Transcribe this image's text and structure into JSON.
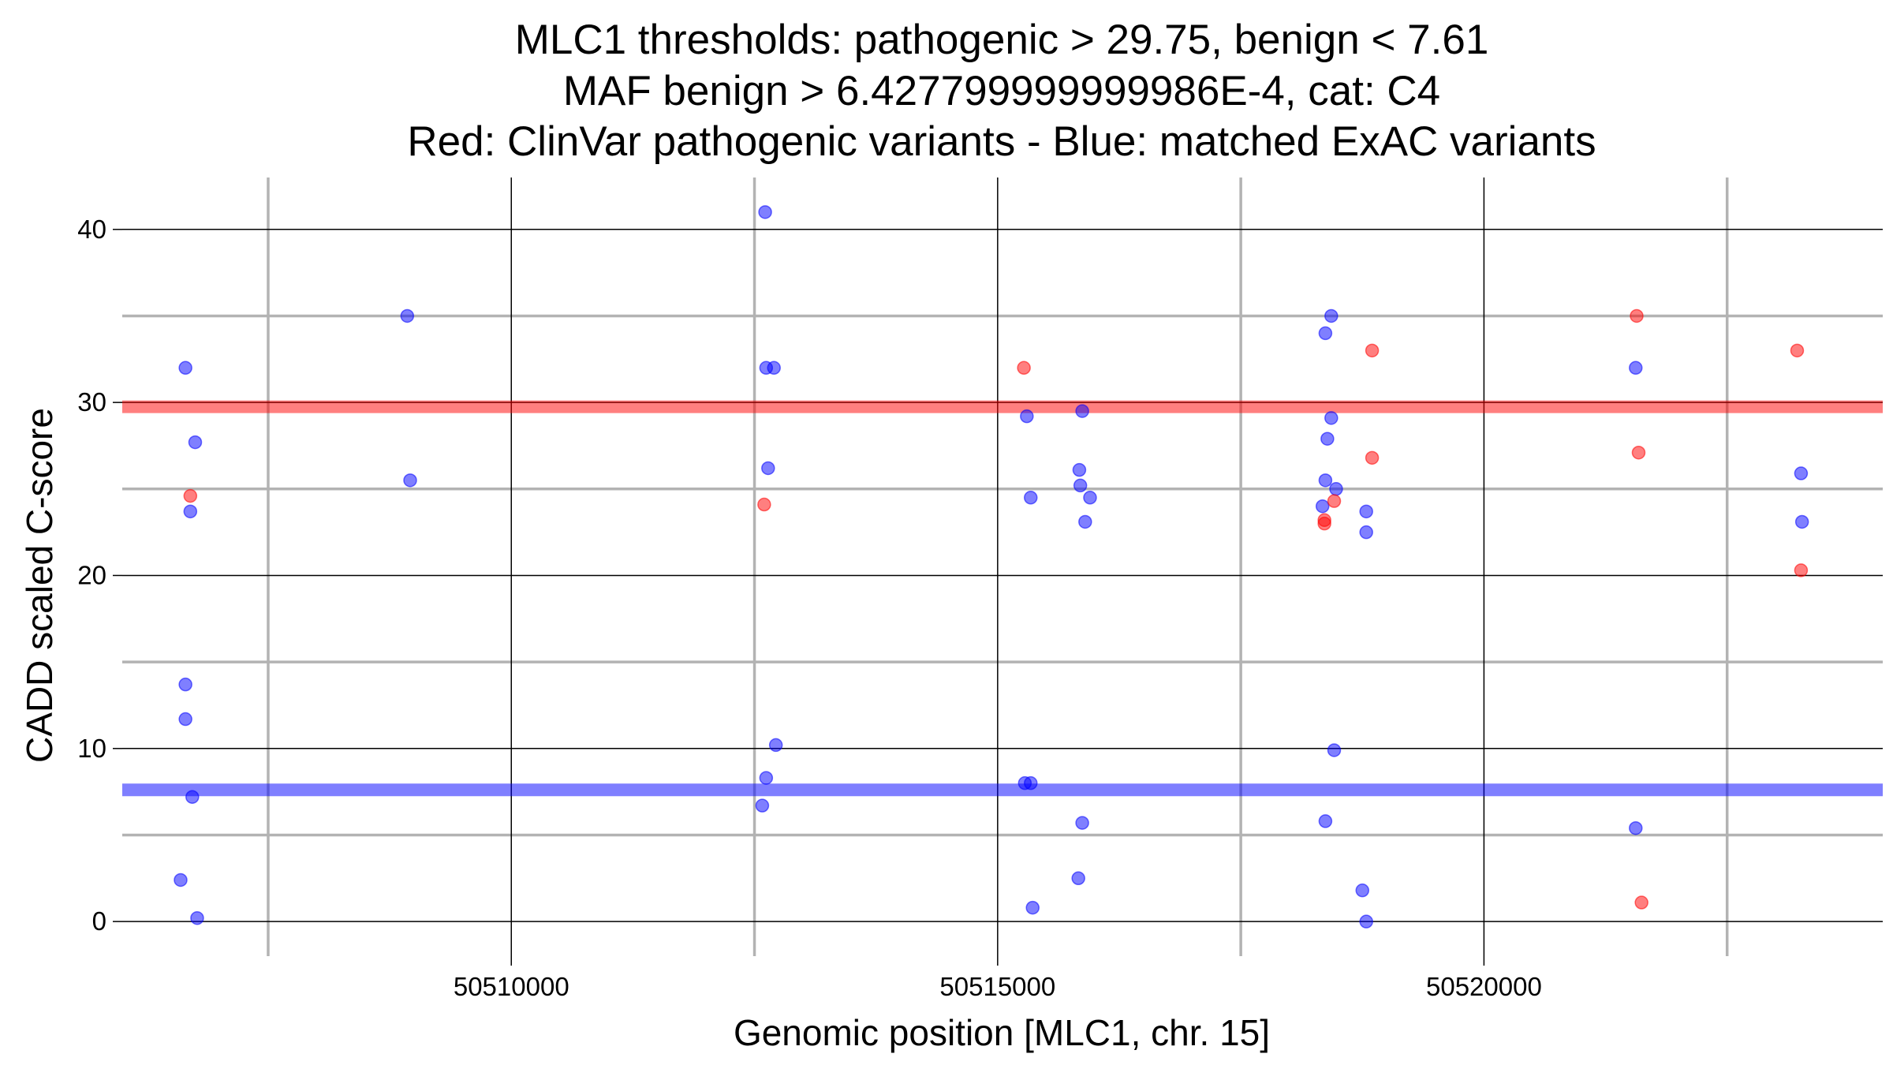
{
  "chart_data": {
    "type": "scatter",
    "title_lines": [
      "MLC1 thresholds: pathogenic > 29.75, benign < 7.61",
      "MAF benign > 6.427799999999986E-4, cat: C4",
      "Red: ClinVar pathogenic variants - Blue: matched ExAC variants"
    ],
    "xlabel": "Genomic position [MLC1, chr. 15]",
    "ylabel": "CADD scaled C-score",
    "xlim": [
      50506000,
      50524100
    ],
    "ylim": [
      -2,
      43
    ],
    "x_ticks": [
      50510000,
      50515000,
      50520000
    ],
    "x_tick_labels": [
      "50510000",
      "50515000",
      "50520000"
    ],
    "x_minor_gridlines": [
      50507500,
      50512500,
      50517500,
      50522500
    ],
    "y_ticks": [
      0,
      10,
      20,
      30,
      40
    ],
    "y_tick_labels": [
      "0",
      "10",
      "20",
      "30",
      "40"
    ],
    "y_minor_gridlines": [
      5,
      15,
      25,
      35
    ],
    "thresholds": [
      {
        "name": "pathogenic",
        "value": 29.75,
        "color": "#ff0000"
      },
      {
        "name": "benign",
        "value": 7.61,
        "color": "#0000ff"
      }
    ],
    "colors": {
      "pathogenic": "#ff0000",
      "benign": "#0000ff"
    },
    "series": [
      {
        "name": "ClinVar pathogenic variants",
        "color": "#ff0000",
        "points": [
          [
            50506700,
            24.6
          ],
          [
            50512600,
            24.1
          ],
          [
            50515270,
            32
          ],
          [
            50518360,
            23.2
          ],
          [
            50518360,
            23.0
          ],
          [
            50518460,
            24.3
          ],
          [
            50518850,
            33
          ],
          [
            50518850,
            26.8
          ],
          [
            50521570,
            35
          ],
          [
            50521590,
            27.1
          ],
          [
            50521620,
            1.1
          ],
          [
            50523220,
            33
          ],
          [
            50523260,
            20.3
          ]
        ]
      },
      {
        "name": "matched ExAC variants",
        "color": "#0000ff",
        "points": [
          [
            50506600,
            2.4
          ],
          [
            50506650,
            32
          ],
          [
            50506650,
            13.7
          ],
          [
            50506650,
            11.7
          ],
          [
            50506700,
            23.7
          ],
          [
            50506720,
            7.2
          ],
          [
            50506750,
            27.7
          ],
          [
            50506770,
            0.2
          ],
          [
            50508930,
            35
          ],
          [
            50508960,
            25.5
          ],
          [
            50512580,
            6.7
          ],
          [
            50512610,
            41
          ],
          [
            50512620,
            32
          ],
          [
            50512620,
            8.3
          ],
          [
            50512640,
            26.2
          ],
          [
            50512700,
            32
          ],
          [
            50512720,
            10.2
          ],
          [
            50515280,
            8.0
          ],
          [
            50515300,
            29.2
          ],
          [
            50515340,
            24.5
          ],
          [
            50515340,
            8.0
          ],
          [
            50515360,
            0.8
          ],
          [
            50515830,
            2.5
          ],
          [
            50515840,
            26.1
          ],
          [
            50515850,
            25.2
          ],
          [
            50515870,
            29.5
          ],
          [
            50515870,
            5.7
          ],
          [
            50515900,
            23.1
          ],
          [
            50515950,
            24.5
          ],
          [
            50518340,
            24.0
          ],
          [
            50518370,
            34.0
          ],
          [
            50518370,
            25.5
          ],
          [
            50518370,
            5.8
          ],
          [
            50518390,
            27.9
          ],
          [
            50518430,
            35
          ],
          [
            50518430,
            29.1
          ],
          [
            50518460,
            9.9
          ],
          [
            50518480,
            25.0
          ],
          [
            50518750,
            1.8
          ],
          [
            50518790,
            23.7
          ],
          [
            50518790,
            22.5
          ],
          [
            50518790,
            0
          ],
          [
            50521560,
            32
          ],
          [
            50521560,
            5.4
          ],
          [
            50523260,
            25.9
          ],
          [
            50523270,
            23.1
          ]
        ]
      }
    ]
  }
}
